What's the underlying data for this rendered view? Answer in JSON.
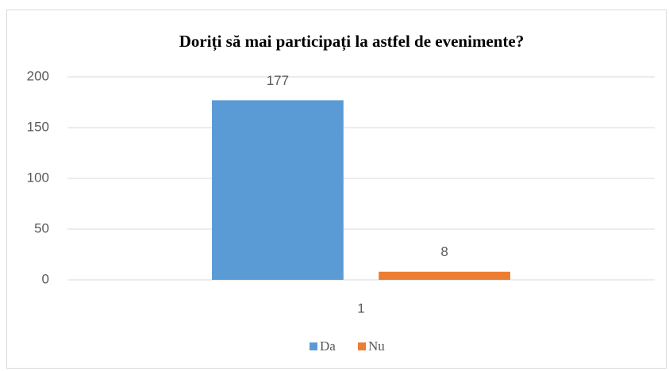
{
  "chart_data": {
    "type": "bar",
    "title": "Doriți să mai participați la astfel de evenimente?",
    "categories": [
      "1"
    ],
    "series": [
      {
        "name": "Da",
        "color": "#5b9bd5",
        "values": [
          177
        ]
      },
      {
        "name": "Nu",
        "color": "#ed7d31",
        "values": [
          8
        ]
      }
    ],
    "ylim": [
      0,
      200
    ],
    "yticks": [
      0,
      50,
      100,
      150,
      200
    ],
    "grid": true,
    "legend": "bottom"
  }
}
